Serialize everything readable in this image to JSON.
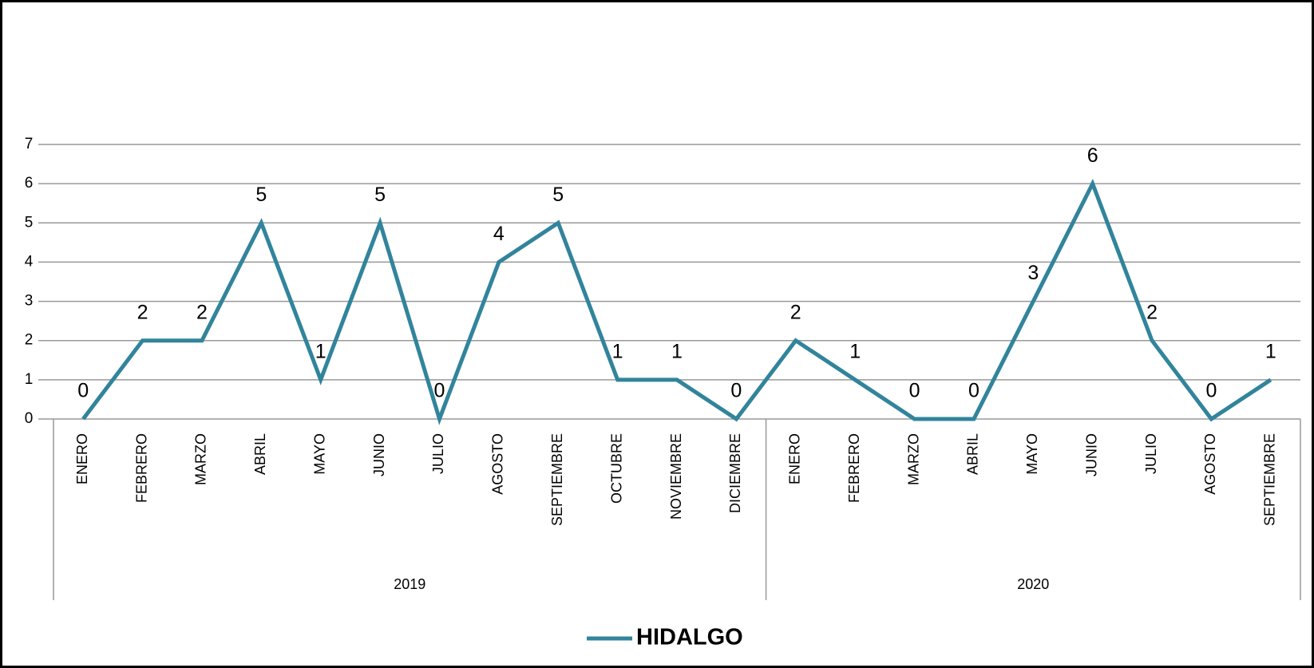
{
  "chart_data": {
    "type": "line",
    "groups": [
      {
        "label": "2019",
        "categories": [
          "ENERO",
          "FEBRERO",
          "MARZO",
          "ABRIL",
          "MAYO",
          "JUNIO",
          "JULIO",
          "AGOSTO",
          "SEPTIEMBRE",
          "OCTUBRE",
          "NOVIEMBRE",
          "DICIEMBRE"
        ]
      },
      {
        "label": "2020",
        "categories": [
          "ENERO",
          "FEBRERO",
          "MARZO",
          "ABRIL",
          "MAYO",
          "JUNIO",
          "JULIO",
          "AGOSTO",
          "SEPTIEMBRE"
        ]
      }
    ],
    "series": [
      {
        "name": "HIDALGO",
        "color": "#31849b",
        "values": [
          0,
          2,
          2,
          5,
          1,
          5,
          0,
          4,
          5,
          1,
          1,
          0,
          2,
          1,
          0,
          0,
          3,
          6,
          2,
          0,
          1
        ]
      }
    ],
    "ylim": [
      0,
      7
    ],
    "yticks": [
      0,
      1,
      2,
      3,
      4,
      5,
      6,
      7
    ],
    "grid": true,
    "legend": "bottom"
  }
}
